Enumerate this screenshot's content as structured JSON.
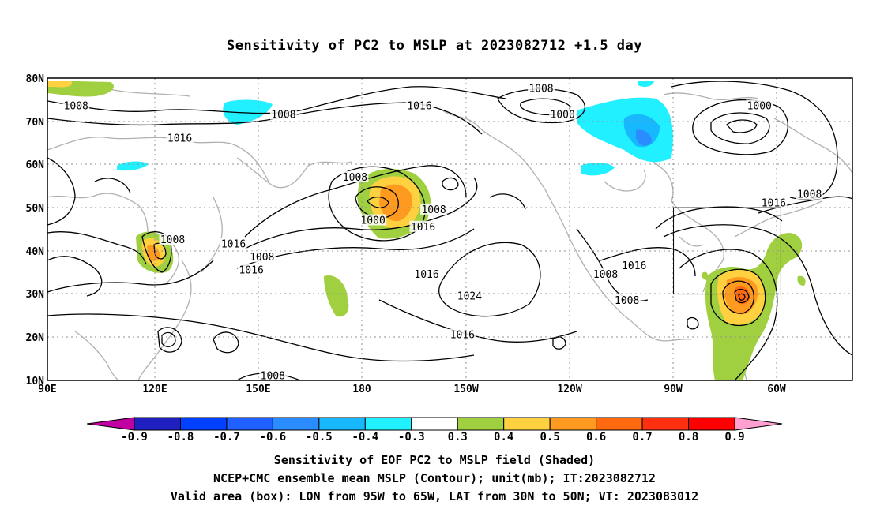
{
  "title": "Sensitivity of PC2 to MSLP at 2023082712 +1.5 day",
  "map": {
    "lat_labels": [
      "80N",
      "70N",
      "60N",
      "50N",
      "40N",
      "30N",
      "20N",
      "10N"
    ],
    "lon_labels": [
      "90E",
      "120E",
      "150E",
      "180",
      "150W",
      "120W",
      "90W",
      "60W"
    ],
    "lon_range": [
      90,
      315
    ],
    "lat_range": [
      10,
      80
    ],
    "valid_box": {
      "lon": [
        265,
        295
      ],
      "lat": [
        30,
        50
      ]
    },
    "contour_labels": [
      {
        "text": "1008",
        "lon": 98,
        "lat": 73.5
      },
      {
        "text": "1008",
        "lon": 156,
        "lat": 71.5
      },
      {
        "text": "1016",
        "lon": 127,
        "lat": 66
      },
      {
        "text": "1016",
        "lon": 194,
        "lat": 73.5
      },
      {
        "text": "1008",
        "lon": 228,
        "lat": 77.5
      },
      {
        "text": "1000",
        "lon": 234,
        "lat": 71.5
      },
      {
        "text": "1000",
        "lon": 289,
        "lat": 73.5
      },
      {
        "text": "1008",
        "lon": 176,
        "lat": 57
      },
      {
        "text": "1000",
        "lon": 181,
        "lat": 47
      },
      {
        "text": "1008",
        "lon": 198,
        "lat": 49.5
      },
      {
        "text": "1016",
        "lon": 195,
        "lat": 45.5
      },
      {
        "text": "1008",
        "lon": 125,
        "lat": 42.5
      },
      {
        "text": "1016",
        "lon": 142,
        "lat": 41.5
      },
      {
        "text": "1008",
        "lon": 150,
        "lat": 38.5
      },
      {
        "text": "1016",
        "lon": 147,
        "lat": 35.5
      },
      {
        "text": "1016",
        "lon": 196,
        "lat": 34.5
      },
      {
        "text": "1024",
        "lon": 208,
        "lat": 29.5
      },
      {
        "text": "1008",
        "lon": 246,
        "lat": 34.5
      },
      {
        "text": "1016",
        "lon": 254,
        "lat": 36.5
      },
      {
        "text": "1008",
        "lon": 252,
        "lat": 28.5
      },
      {
        "text": "1016",
        "lon": 206,
        "lat": 20.5
      },
      {
        "text": "1008",
        "lon": 153,
        "lat": 11
      },
      {
        "text": "1016",
        "lon": 293,
        "lat": 51
      },
      {
        "text": "1008",
        "lon": 303,
        "lat": 53
      }
    ]
  },
  "colorbar": {
    "labels": [
      "-0.9",
      "-0.8",
      "-0.7",
      "-0.6",
      "-0.5",
      "-0.4",
      "-0.3",
      "0.3",
      "0.4",
      "0.5",
      "0.6",
      "0.7",
      "0.8",
      "0.9"
    ],
    "colors": [
      "#2020c0",
      "#0040ff",
      "#2060ff",
      "#2a8cff",
      "#18b8ff",
      "#20f0ff",
      "#ffffff",
      "#a0d040",
      "#ffd040",
      "#ff9a20",
      "#ff6a10",
      "#ff3010",
      "#ff0000"
    ],
    "left_end_color": "#c000a0",
    "right_end_color": "#ffa0d0"
  },
  "captions": [
    "Sensitivity of EOF PC2 to MSLP field (Shaded)",
    "NCEP+CMC ensemble mean MSLP (Contour); unit(mb); IT:2023082712",
    "Valid area (box): LON from 95W to 65W, LAT from 30N to 50N; VT: 2023083012"
  ]
}
